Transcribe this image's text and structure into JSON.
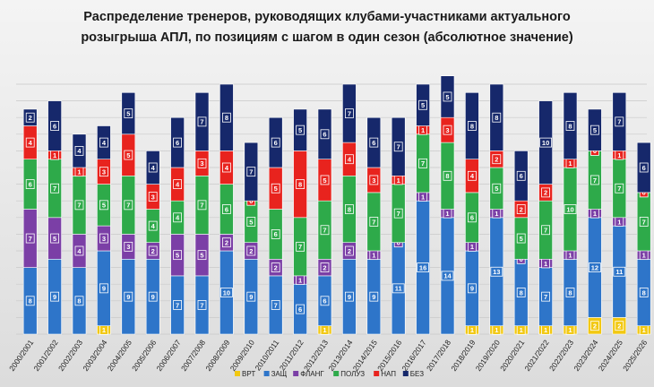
{
  "chart_data": {
    "type": "bar",
    "stacked": true,
    "title_line1": "Распределение тренеров, руководящих клубами-участниками актуального",
    "title_line2": "розыгрыша АПЛ, по позициям с шагом в один сезон (абсолютное значение)",
    "categories": [
      "2000/2001",
      "2001/2002",
      "2002/2003",
      "2003/2004",
      "2004/2005",
      "2005/2006",
      "2006/2007",
      "2007/2008",
      "2008/2009",
      "2009/2010",
      "2010/2011",
      "2011/2012",
      "2012/2013",
      "2013/2014",
      "2014/2015",
      "2015/2016",
      "2016/2017",
      "2017/2018",
      "2018/2019",
      "2019/2020",
      "2020/2021",
      "2021/2022",
      "2022/2023",
      "2023/2024",
      "2024/2025",
      "2025/2026"
    ],
    "series": [
      {
        "name": "ВРТ",
        "color": "#f2c811",
        "values": [
          0,
          0,
          0,
          1,
          0,
          0,
          0,
          0,
          0,
          0,
          0,
          0,
          1,
          0,
          0,
          0,
          0,
          0,
          1,
          1,
          1,
          1,
          1,
          2,
          2,
          1
        ]
      },
      {
        "name": "ЗАЩ",
        "color": "#2e75c9",
        "values": [
          8,
          9,
          8,
          9,
          9,
          9,
          7,
          7,
          10,
          9,
          7,
          6,
          6,
          9,
          9,
          11,
          16,
          14,
          9,
          13,
          8,
          7,
          8,
          12,
          11,
          8
        ]
      },
      {
        "name": "ФЛАНГ",
        "color": "#7b3fa6",
        "values": [
          7,
          5,
          4,
          3,
          3,
          2,
          5,
          5,
          2,
          2,
          2,
          1,
          2,
          2,
          1,
          0,
          1,
          1,
          1,
          1,
          0,
          1,
          1,
          1,
          1,
          1
        ]
      },
      {
        "name": "ПОЛУЗ",
        "color": "#2eaa4a",
        "values": [
          6,
          7,
          7,
          5,
          7,
          4,
          4,
          7,
          6,
          5,
          6,
          7,
          7,
          8,
          7,
          7,
          7,
          8,
          6,
          5,
          5,
          7,
          10,
          7,
          7,
          7
        ]
      },
      {
        "name": "НАП",
        "color": "#e8231e",
        "values": [
          4,
          1,
          1,
          3,
          5,
          3,
          4,
          3,
          4,
          0,
          5,
          8,
          5,
          4,
          3,
          1,
          1,
          3,
          4,
          2,
          2,
          2,
          1,
          0,
          1,
          0
        ]
      },
      {
        "name": "БЕЗ",
        "color": "#16286b",
        "values": [
          2,
          6,
          4,
          4,
          5,
          4,
          6,
          7,
          8,
          7,
          6,
          5,
          6,
          7,
          6,
          7,
          5,
          5,
          8,
          8,
          6,
          10,
          8,
          5,
          7,
          6
        ]
      }
    ]
  }
}
